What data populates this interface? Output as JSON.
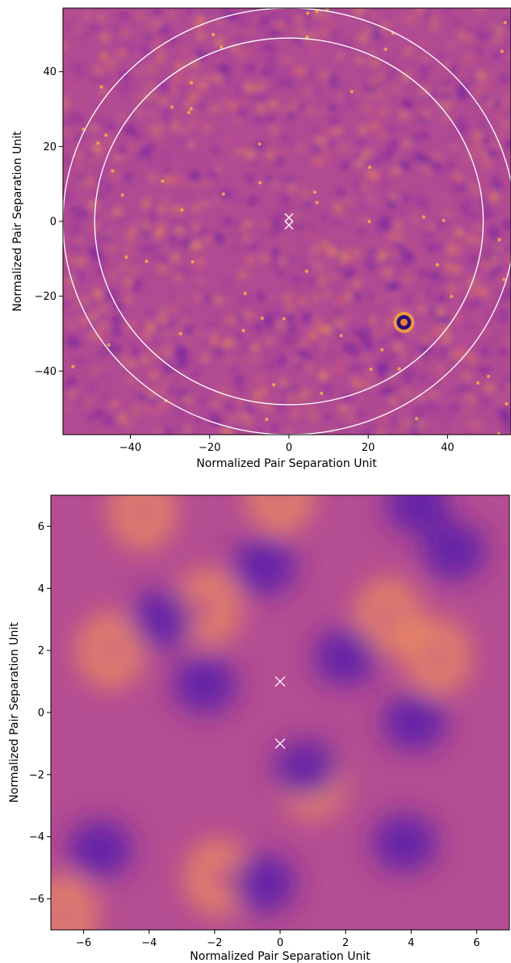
{
  "chart_data": [
    {
      "type": "heatmap",
      "title": "",
      "xlabel": "Normalized Pair Separation Unit",
      "ylabel": "Normalized Pair Separation Unit",
      "xlim": [
        -57,
        56
      ],
      "ylim": [
        -57,
        57
      ],
      "xticks": [
        -40,
        -20,
        0,
        20,
        40
      ],
      "yticks": [
        -40,
        -20,
        0,
        20,
        40
      ],
      "tick_labels_x": [
        "−40",
        "−20",
        "0",
        "20",
        "40"
      ],
      "tick_labels_y": [
        "−40",
        "−20",
        "0",
        "20",
        "40"
      ],
      "colormap": "plasma",
      "grid": false,
      "markers": [
        {
          "symbol": "x",
          "x": 0,
          "y": 1,
          "color": "#ffffff"
        },
        {
          "symbol": "x",
          "x": 0,
          "y": -1,
          "color": "#ffffff"
        }
      ],
      "circles": [
        {
          "cx": 0,
          "cy": 0,
          "r": 49,
          "color": "#ffffff"
        },
        {
          "cx": 0,
          "cy": 0,
          "r": 57,
          "color": "#ffffff"
        }
      ],
      "features": [
        {
          "type": "dark ring",
          "x": 29,
          "y": -27
        }
      ]
    },
    {
      "type": "heatmap",
      "title": "",
      "xlabel": "Normalized Pair Separation Unit",
      "ylabel": "Normalized Pair Separation Unit",
      "xlim": [
        -7,
        7
      ],
      "ylim": [
        -7,
        7
      ],
      "xticks": [
        -6,
        -4,
        -2,
        0,
        2,
        4,
        6
      ],
      "yticks": [
        -6,
        -4,
        -2,
        0,
        2,
        4,
        6
      ],
      "tick_labels_x": [
        "−6",
        "−4",
        "−2",
        "0",
        "2",
        "4",
        "6"
      ],
      "tick_labels_y": [
        "−6",
        "−4",
        "−2",
        "0",
        "2",
        "4",
        "6"
      ],
      "colormap": "plasma",
      "grid": false,
      "markers": [
        {
          "symbol": "x",
          "x": 0,
          "y": 1,
          "color": "#ffffff"
        },
        {
          "symbol": "x",
          "x": 0,
          "y": -1,
          "color": "#ffffff"
        }
      ],
      "features": [
        {
          "type": "bright blob",
          "x": -4.2,
          "y": 6.5
        },
        {
          "type": "bright blob",
          "x": -2.2,
          "y": 3.4
        },
        {
          "type": "bright blob",
          "x": -5.2,
          "y": 2.0
        },
        {
          "type": "bright blob",
          "x": 3.3,
          "y": 3.1
        },
        {
          "type": "bright blob",
          "x": 4.8,
          "y": 1.8
        },
        {
          "type": "bright blob",
          "x": -1.9,
          "y": -5.3
        },
        {
          "type": "bright blob",
          "x": 0.0,
          "y": 7.0
        },
        {
          "type": "bright blob",
          "x": -6.6,
          "y": -6.5
        },
        {
          "type": "bright blob",
          "x": 1.0,
          "y": -2.2
        },
        {
          "type": "dark blob",
          "x": 5.3,
          "y": 5.2
        },
        {
          "type": "dark blob",
          "x": 4.2,
          "y": 6.7
        },
        {
          "type": "dark blob",
          "x": -3.6,
          "y": 3.0
        },
        {
          "type": "dark blob",
          "x": -0.5,
          "y": 4.7
        },
        {
          "type": "dark blob",
          "x": -2.3,
          "y": 0.9
        },
        {
          "type": "dark blob",
          "x": 4.1,
          "y": -0.3
        },
        {
          "type": "dark blob",
          "x": 3.8,
          "y": -4.2
        },
        {
          "type": "dark blob",
          "x": -5.5,
          "y": -4.4
        },
        {
          "type": "dark blob",
          "x": 0.8,
          "y": -1.8
        },
        {
          "type": "dark blob",
          "x": -0.5,
          "y": -5.5
        },
        {
          "type": "dark blob",
          "x": 2.0,
          "y": 1.8
        }
      ]
    }
  ]
}
